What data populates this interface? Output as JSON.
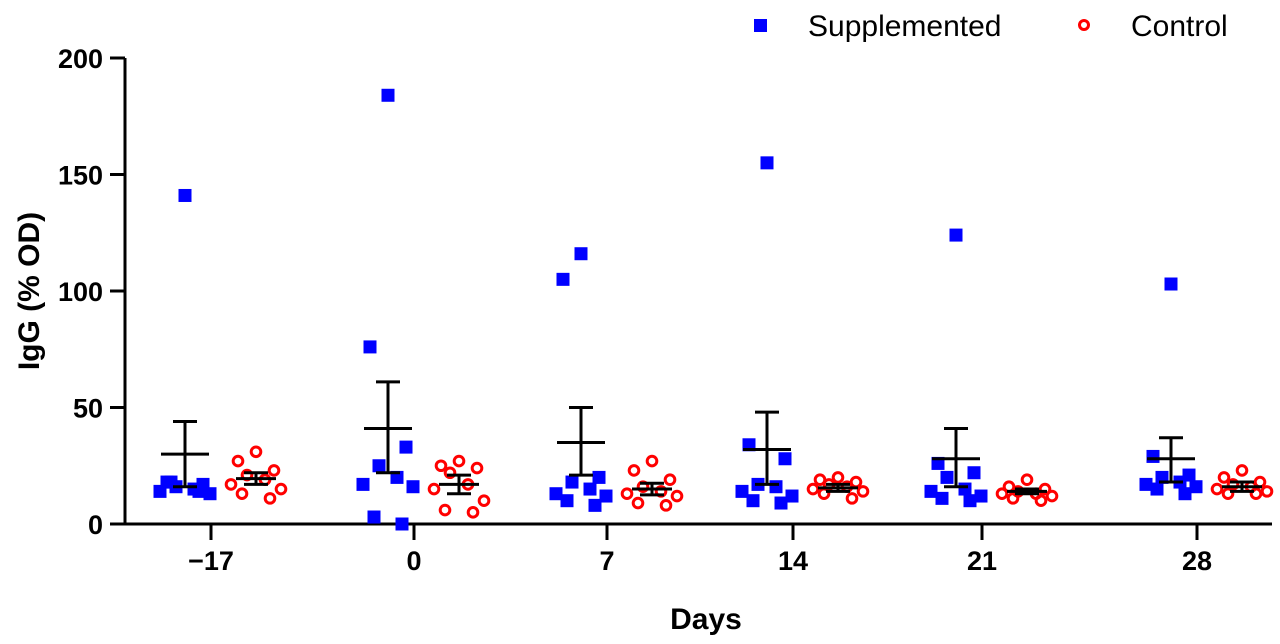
{
  "chart_data": {
    "type": "scatter",
    "title": "",
    "xlabel": "Days",
    "ylabel": "IgG (% OD)",
    "ylim": [
      0,
      200
    ],
    "yticks": [
      0,
      50,
      100,
      150,
      200
    ],
    "categories": [
      "−17",
      "0",
      "7",
      "14",
      "21",
      "28"
    ],
    "legend_position": "top-right",
    "series": [
      {
        "name": "Supplemented",
        "color": "#0000ff",
        "marker": "square",
        "points": [
          [
            141,
            18,
            17,
            16,
            15,
            14,
            13,
            18,
            14
          ],
          [
            184,
            76,
            33,
            25,
            20,
            17,
            16,
            3,
            0
          ],
          [
            116,
            105,
            20,
            18,
            15,
            13,
            12,
            10,
            8
          ],
          [
            155,
            34,
            28,
            17,
            16,
            14,
            12,
            10,
            9
          ],
          [
            124,
            26,
            22,
            20,
            15,
            14,
            12,
            11,
            10
          ],
          [
            103,
            29,
            21,
            20,
            18,
            17,
            16,
            15,
            13
          ]
        ],
        "mean": [
          30,
          41,
          35,
          32,
          28,
          28
        ],
        "sem_upper": [
          44,
          61,
          50,
          48,
          41,
          37
        ],
        "sem_lower": [
          16,
          22,
          21,
          17,
          16,
          18
        ]
      },
      {
        "name": "Control",
        "color": "#ff0000",
        "marker": "open-circle",
        "points": [
          [
            31,
            27,
            23,
            21,
            19,
            17,
            15,
            13,
            11
          ],
          [
            27,
            25,
            24,
            22,
            17,
            15,
            10,
            6,
            5
          ],
          [
            27,
            23,
            19,
            16,
            14,
            13,
            12,
            9,
            8
          ],
          [
            20,
            19,
            18,
            17,
            16,
            15,
            14,
            13,
            11
          ],
          [
            19,
            16,
            15,
            14,
            13,
            13,
            12,
            11,
            10
          ],
          [
            23,
            20,
            18,
            17,
            16,
            15,
            14,
            13,
            13
          ]
        ],
        "mean": [
          19.5,
          17,
          15,
          15.5,
          14,
          16
        ],
        "sem_upper": [
          22,
          21,
          17.5,
          17,
          15,
          18
        ],
        "sem_lower": [
          17,
          13,
          12.5,
          14,
          13,
          14
        ]
      }
    ]
  }
}
